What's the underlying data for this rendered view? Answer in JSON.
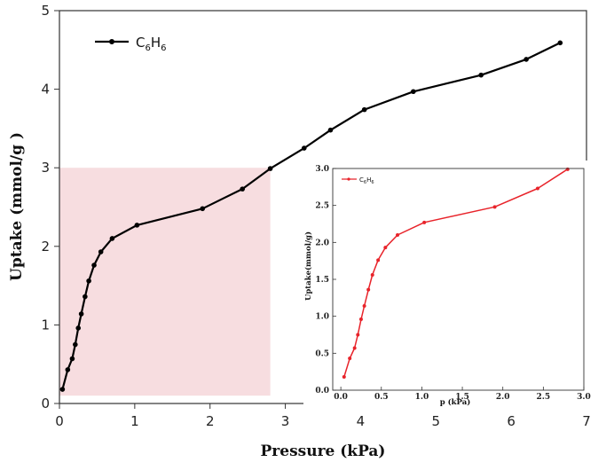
{
  "chart_data": [
    {
      "type": "line",
      "xlabel": "Pressure (kPa)",
      "ylabel": "Uptake (mmol/g )",
      "xlim": [
        0,
        7
      ],
      "ylim": [
        0,
        5
      ],
      "xticks": [
        "0",
        "1",
        "2",
        "3",
        "4",
        "5",
        "6",
        "7"
      ],
      "yticks": [
        "0",
        "1",
        "2",
        "3",
        "4",
        "5"
      ],
      "grid": false,
      "legend_position": "top-left",
      "highlight_region": {
        "x": [
          0,
          2.8
        ],
        "y": [
          0.1,
          3.0
        ],
        "color": "#f7dde0"
      },
      "series": [
        {
          "name": "C6H6",
          "legend_base": "C",
          "legend_sub1": "6",
          "legend_mid": "H",
          "legend_sub2": "6",
          "color": "#000000",
          "x": [
            0.04,
            0.11,
            0.17,
            0.21,
            0.25,
            0.29,
            0.34,
            0.39,
            0.46,
            0.55,
            0.7,
            1.03,
            1.9,
            2.43,
            2.8,
            3.25,
            3.6,
            4.05,
            4.7,
            5.6,
            6.2,
            6.65
          ],
          "y": [
            0.18,
            0.43,
            0.57,
            0.75,
            0.96,
            1.14,
            1.36,
            1.56,
            1.76,
            1.93,
            2.1,
            2.27,
            2.48,
            2.73,
            2.99,
            3.25,
            3.48,
            3.74,
            3.97,
            4.18,
            4.38,
            4.59
          ]
        }
      ]
    },
    {
      "type": "line",
      "xlabel": "p (kPa)",
      "ylabel": "Uptake(mmol/g)",
      "xlim": [
        -0.1,
        3.0
      ],
      "ylim": [
        0.0,
        3.0
      ],
      "xticks": [
        "0.0",
        "0.5",
        "1.0",
        "1.5",
        "2.0",
        "2.5",
        "3.0"
      ],
      "yticks": [
        "0.0",
        "0.5",
        "1.0",
        "1.5",
        "2.0",
        "2.5",
        "3.0"
      ],
      "grid": false,
      "legend_position": "top-left",
      "series": [
        {
          "name": "C6H6",
          "legend_base": "C",
          "legend_sub1": "6",
          "legend_mid": "H",
          "legend_sub2": "6",
          "color": "#e8232a",
          "x": [
            0.04,
            0.11,
            0.17,
            0.21,
            0.25,
            0.29,
            0.34,
            0.39,
            0.46,
            0.55,
            0.7,
            1.03,
            1.9,
            2.43,
            2.8
          ],
          "y": [
            0.18,
            0.43,
            0.57,
            0.75,
            0.96,
            1.14,
            1.36,
            1.56,
            1.76,
            1.93,
            2.1,
            2.27,
            2.48,
            2.73,
            2.99
          ]
        }
      ]
    }
  ]
}
